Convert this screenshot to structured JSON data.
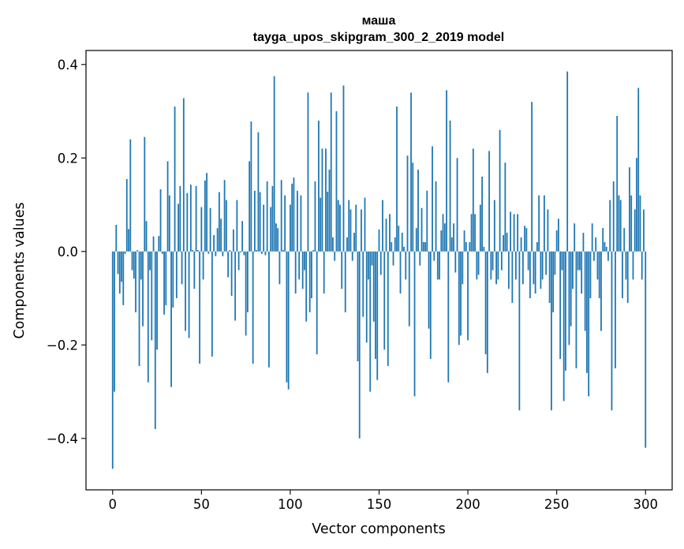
{
  "chart_data": {
    "type": "bar",
    "title": "маша",
    "subtitle": "tayga_upos_skipgram_300_2_2019 model",
    "xlabel": "Vector components",
    "ylabel": "Components values",
    "xlim": [
      -15,
      315
    ],
    "ylim": [
      -0.51,
      0.43
    ],
    "xticks": [
      0,
      50,
      100,
      150,
      200,
      250,
      300
    ],
    "xtick_labels": [
      "0",
      "50",
      "100",
      "150",
      "200",
      "250",
      "300"
    ],
    "yticks": [
      -0.4,
      -0.2,
      0.0,
      0.2,
      0.4
    ],
    "ytick_labels": [
      "−0.4",
      "−0.2",
      "0.0",
      "0.2",
      "0.4"
    ],
    "color": "#1f77b4",
    "values": [
      -0.465,
      -0.3,
      0.057,
      -0.048,
      -0.09,
      -0.065,
      -0.115,
      -0.005,
      0.155,
      0.048,
      0.24,
      -0.04,
      -0.058,
      -0.13,
      0.003,
      -0.245,
      -0.06,
      -0.16,
      0.245,
      0.065,
      -0.28,
      -0.04,
      -0.19,
      0.032,
      -0.38,
      -0.21,
      0.033,
      0.133,
      -0.005,
      -0.135,
      -0.115,
      0.193,
      0.12,
      -0.29,
      -0.12,
      0.31,
      -0.1,
      0.102,
      0.14,
      -0.07,
      0.328,
      -0.17,
      0.125,
      -0.185,
      0.143,
      0.003,
      -0.08,
      0.14,
      0.003,
      -0.24,
      0.095,
      -0.06,
      0.152,
      0.168,
      -0.005,
      0.093,
      -0.225,
      0.035,
      -0.01,
      0.05,
      0.127,
      0.07,
      -0.01,
      0.153,
      0.11,
      -0.055,
      0.003,
      -0.095,
      0.047,
      -0.148,
      0.11,
      -0.04,
      -0.002,
      0.065,
      -0.008,
      -0.18,
      -0.13,
      0.193,
      0.278,
      -0.24,
      0.13,
      0.003,
      0.255,
      0.127,
      -0.005,
      0.1,
      -0.008,
      0.15,
      -0.248,
      0.095,
      0.14,
      0.375,
      0.06,
      0.05,
      -0.07,
      0.153,
      0.003,
      0.12,
      -0.28,
      -0.295,
      0.1,
      0.145,
      0.158,
      -0.09,
      0.13,
      -0.06,
      0.12,
      -0.08,
      -0.04,
      -0.15,
      0.34,
      -0.13,
      -0.1,
      0.003,
      0.15,
      -0.22,
      0.28,
      0.115,
      0.22,
      -0.09,
      0.22,
      0.128,
      0.175,
      0.34,
      0.03,
      -0.02,
      0.3,
      0.11,
      0.1,
      -0.08,
      0.355,
      -0.13,
      0.03,
      0.11,
      0.09,
      -0.02,
      0.04,
      0.1,
      -0.235,
      -0.4,
      0.09,
      -0.14,
      0.115,
      -0.195,
      -0.06,
      -0.3,
      -0.03,
      -0.15,
      -0.23,
      -0.275,
      0.047,
      -0.05,
      0.11,
      -0.21,
      0.07,
      -0.245,
      0.08,
      0.02,
      -0.03,
      0.03,
      0.31,
      0.055,
      -0.09,
      0.04,
      0.01,
      -0.06,
      0.205,
      -0.16,
      0.34,
      0.19,
      -0.31,
      0.05,
      0.175,
      -0.03,
      0.093,
      0.02,
      0.02,
      0.13,
      -0.165,
      -0.23,
      0.225,
      -0.02,
      0.15,
      -0.06,
      -0.06,
      0.045,
      0.08,
      0.06,
      0.345,
      -0.28,
      0.28,
      0.03,
      0.06,
      -0.045,
      0.2,
      -0.2,
      -0.18,
      -0.07,
      0.045,
      0.02,
      -0.19,
      0.02,
      0.08,
      0.22,
      0.08,
      -0.06,
      -0.05,
      0.1,
      0.16,
      0.01,
      -0.22,
      -0.26,
      0.215,
      -0.06,
      -0.04,
      0.11,
      -0.07,
      -0.06,
      0.26,
      -0.04,
      0.035,
      0.19,
      0.04,
      -0.08,
      0.085,
      -0.11,
      0.08,
      -0.06,
      0.08,
      -0.34,
      0.03,
      -0.07,
      0.055,
      0.05,
      -0.04,
      -0.1,
      0.32,
      -0.07,
      -0.09,
      0.02,
      0.12,
      -0.08,
      -0.06,
      0.12,
      -0.05,
      0.09,
      -0.11,
      -0.34,
      -0.13,
      -0.05,
      0.045,
      0.07,
      -0.23,
      -0.04,
      -0.32,
      -0.255,
      0.385,
      -0.2,
      -0.16,
      -0.08,
      0.06,
      -0.25,
      -0.04,
      -0.04,
      -0.09,
      0.04,
      -0.17,
      -0.26,
      -0.31,
      -0.1,
      0.06,
      -0.02,
      0.03,
      -0.06,
      -0.1,
      -0.17,
      0.05,
      0.02,
      0.01,
      -0.02,
      0.11,
      -0.34,
      0.15,
      -0.25,
      0.29,
      0.12,
      0.11,
      -0.1,
      0.05,
      -0.06,
      -0.11,
      0.18,
      0.12,
      -0.06,
      0.09,
      0.2,
      0.35,
      0.12,
      -0.06,
      0.09,
      -0.42
    ]
  }
}
